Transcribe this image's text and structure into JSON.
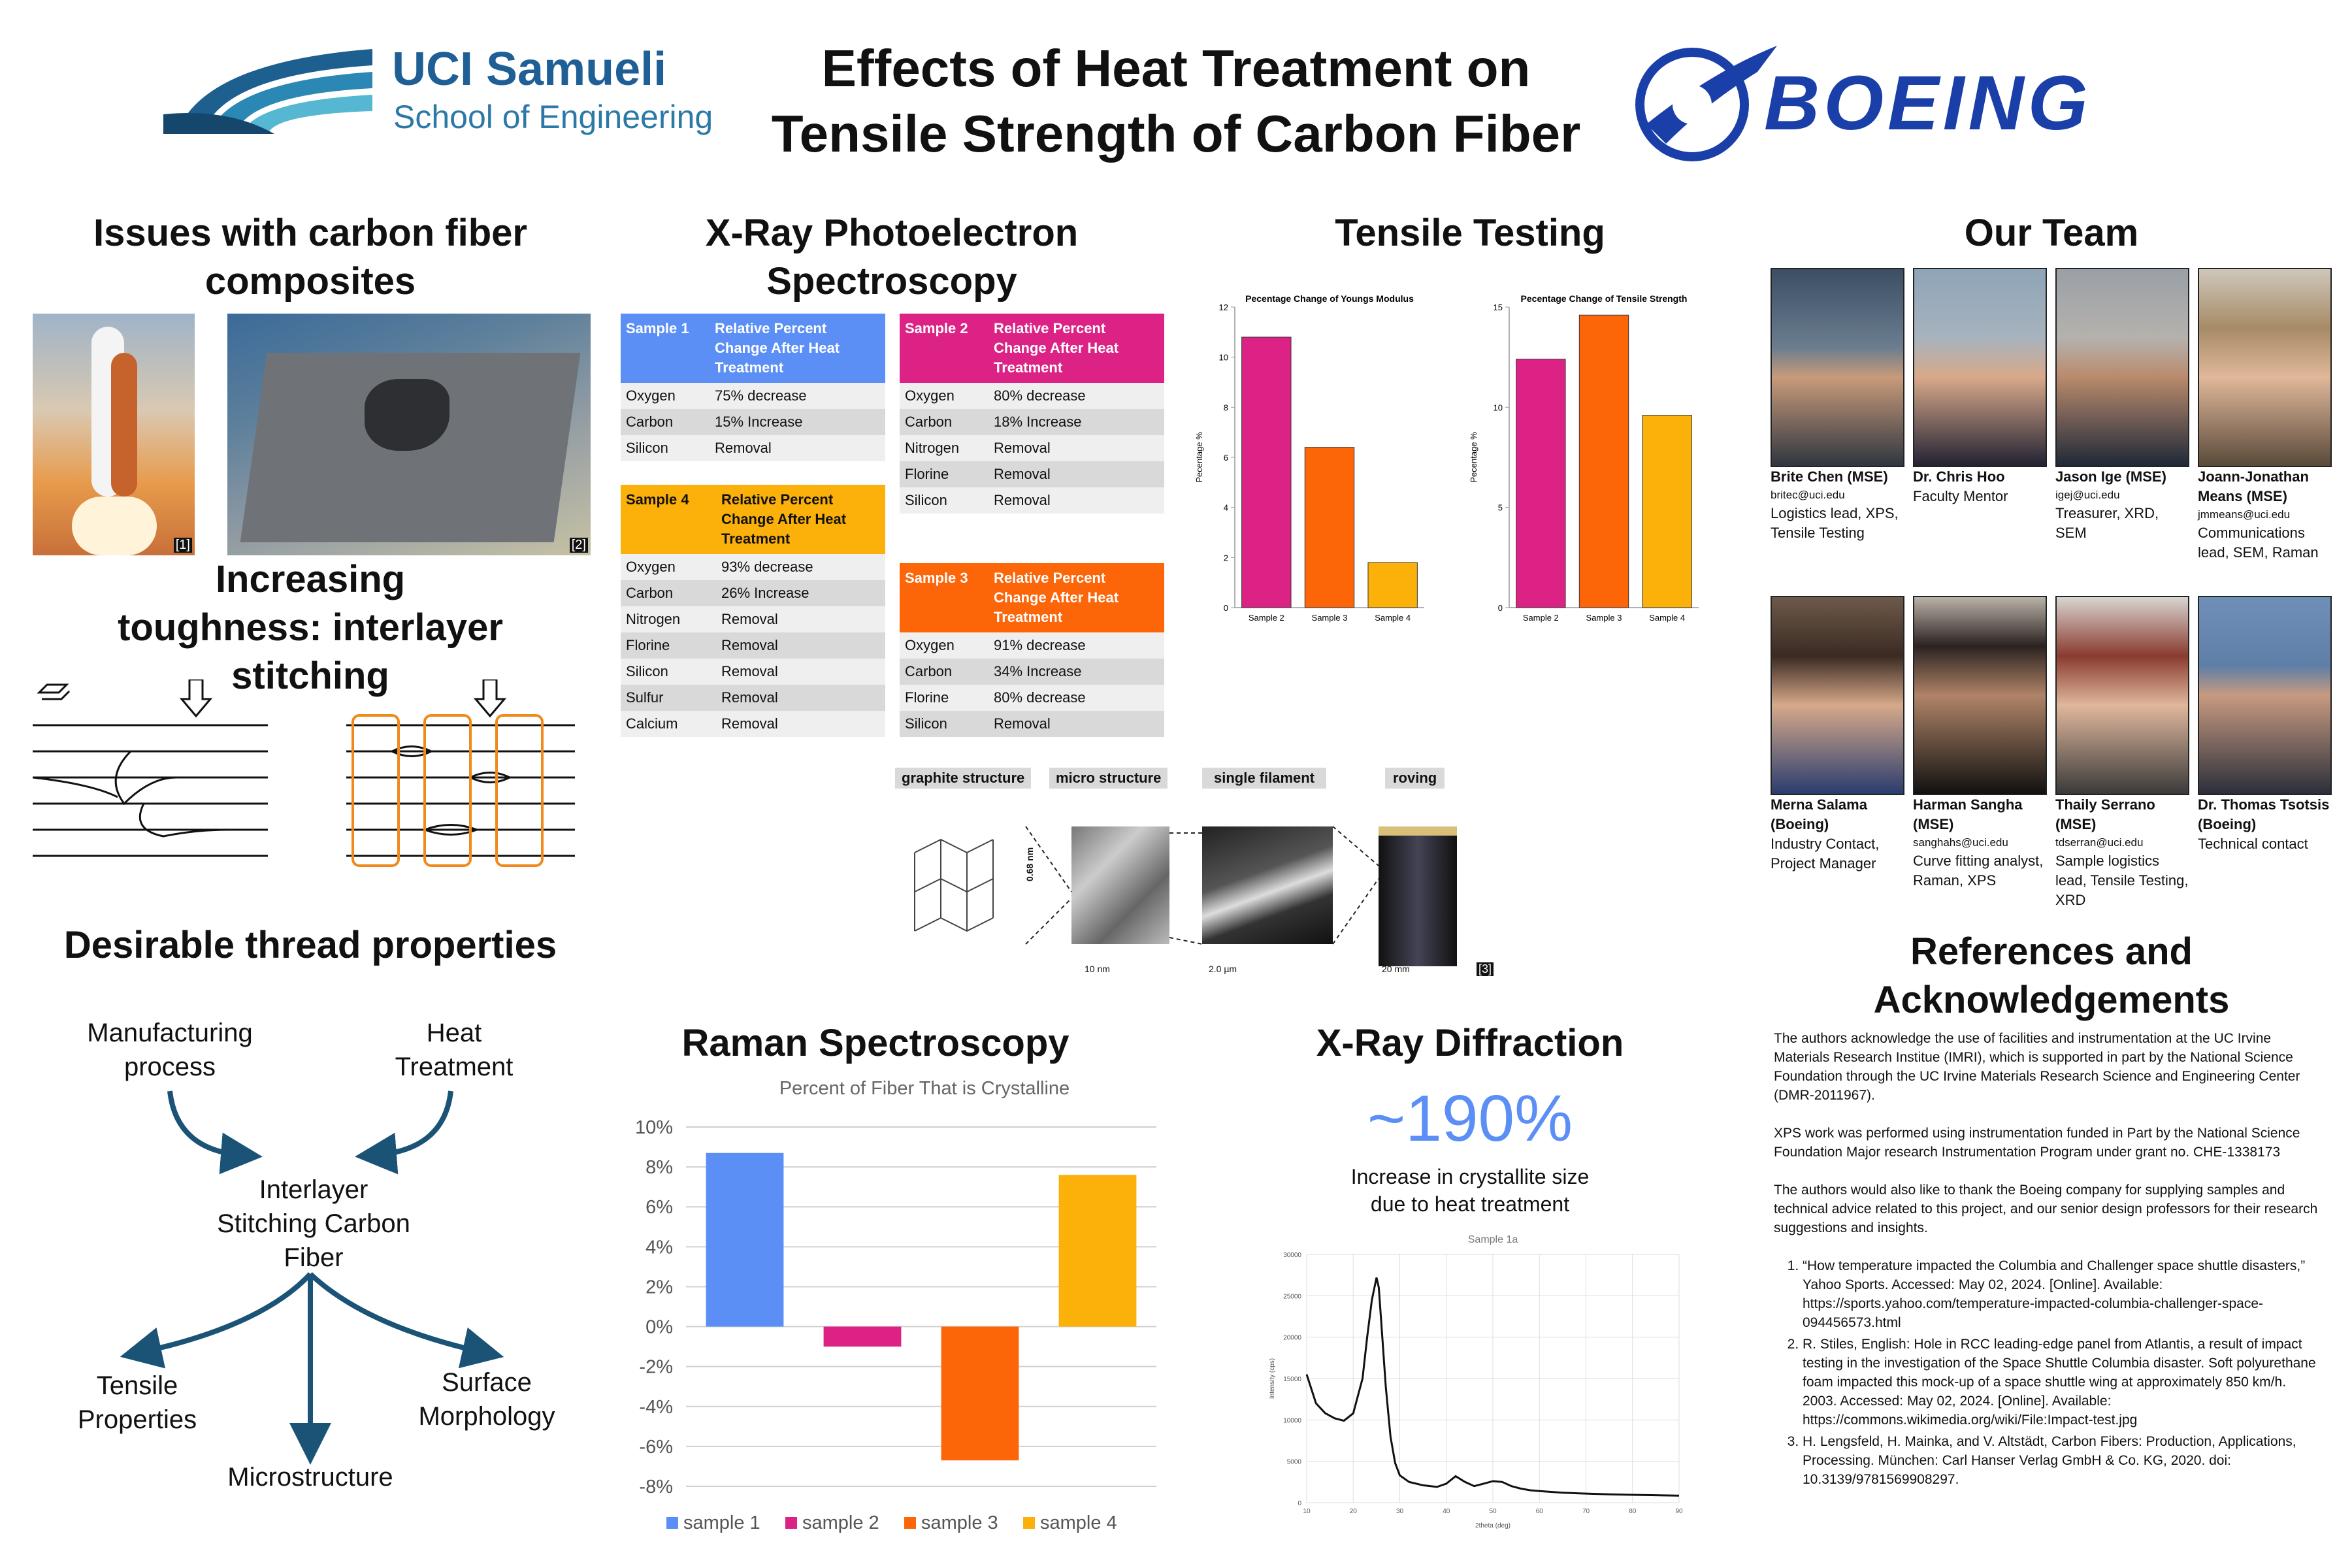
{
  "header": {
    "uci_logo_line1": "UCI Samueli",
    "uci_logo_line2": "School of Engineering",
    "title_line1": "Effects of Heat Treatment on",
    "title_line2": "Tensile Strength of Carbon Fiber",
    "boeing_logo": "BOEING"
  },
  "issues": {
    "heading": "Issues with carbon fiber composites",
    "img1_ref": "[1]",
    "img2_ref": "[2]",
    "toughness_heading": "Increasing toughness: interlayer stitching"
  },
  "thread": {
    "heading": "Desirable thread properties",
    "manufacturing": "Manufacturing process",
    "heat": "Heat Treatment",
    "center": "Interlayer Stitching Carbon Fiber",
    "tensile": "Tensile Properties",
    "surface": "Surface Morphology",
    "micro": "Microstructure"
  },
  "xps": {
    "heading": "X-Ray Photoelectron Spectroscopy",
    "tables": [
      {
        "sample": "Sample 1",
        "header": "Relative Percent Change After Heat Treatment",
        "color": "#5b8ff5",
        "rows": [
          [
            "Oxygen",
            "75% decrease"
          ],
          [
            "Carbon",
            "15% Increase"
          ],
          [
            "Silicon",
            "Removal"
          ]
        ]
      },
      {
        "sample": "Sample 2",
        "header": "Relative Percent Change After Heat Treatment",
        "color": "#dc2385",
        "rows": [
          [
            "Oxygen",
            "80% decrease"
          ],
          [
            "Carbon",
            "18% Increase"
          ],
          [
            "Nitrogen",
            "Removal"
          ],
          [
            "Florine",
            "Removal"
          ],
          [
            "Silicon",
            "Removal"
          ]
        ]
      },
      {
        "sample": "Sample 4",
        "header": "Relative Percent Change After Heat Treatment",
        "color": "#fcb00a",
        "rows": [
          [
            "Oxygen",
            "93% decrease"
          ],
          [
            "Carbon",
            "26% Increase"
          ],
          [
            "Nitrogen",
            "Removal"
          ],
          [
            "Florine",
            "Removal"
          ],
          [
            "Silicon",
            "Removal"
          ],
          [
            "Sulfur",
            "Removal"
          ],
          [
            "Calcium",
            "Removal"
          ]
        ]
      },
      {
        "sample": "Sample 3",
        "header": "Relative Percent Change After Heat Treatment",
        "color": "#fc6508",
        "rows": [
          [
            "Oxygen",
            "91% decrease"
          ],
          [
            "Carbon",
            "34% Increase"
          ],
          [
            "Florine",
            "80% decrease"
          ],
          [
            "Silicon",
            "Removal"
          ]
        ]
      }
    ],
    "structure_labels": [
      "graphite structure",
      "micro structure",
      "single filament",
      "roving"
    ],
    "scale_labels": [
      "10 nm",
      "2.0 µm",
      "20 mm"
    ],
    "dim_label": "0.68 nm",
    "structure_ref": "[3]"
  },
  "tensile": {
    "heading": "Tensile Testing"
  },
  "raman": {
    "heading": "Raman Spectroscopy"
  },
  "xrd": {
    "heading": "X-Ray Diffraction",
    "big_value": "~190%",
    "caption_line1": "Increase in crystallite size",
    "caption_line2": "due to heat treatment"
  },
  "team": {
    "heading": "Our Team",
    "members": [
      {
        "name": "Brite Chen (MSE)",
        "email": "britec@uci.edu",
        "role": "Logistics lead, XPS, Tensile Testing"
      },
      {
        "name": "Dr. Chris Hoo",
        "email": "",
        "role": "Faculty Mentor"
      },
      {
        "name": "Jason Ige (MSE)",
        "email": "igej@uci.edu",
        "role": "Treasurer, XRD, SEM"
      },
      {
        "name": "Joann-Jonathan Means (MSE)",
        "email": "jmmeans@uci.edu",
        "role": "Communications lead, SEM, Raman"
      },
      {
        "name": "Merna Salama (Boeing)",
        "email": "",
        "role": "Industry Contact, Project Manager"
      },
      {
        "name": "Harman Sangha (MSE)",
        "email": "sanghahs@uci.edu",
        "role": "Curve fitting analyst, Raman, XPS"
      },
      {
        "name": "Thaily Serrano (MSE)",
        "email": "tdserran@uci.edu",
        "role": "Sample logistics lead, Tensile Testing, XRD"
      },
      {
        "name": "Dr. Thomas Tsotsis (Boeing)",
        "email": "",
        "role": "Technical contact"
      }
    ]
  },
  "refs": {
    "heading": "References and Acknowledgements",
    "para1": "The authors acknowledge the use of facilities and instrumentation at the UC Irvine Materials Research Institue (IMRI), which is supported in part by the National Science Foundation through the UC Irvine Materials Research Science and Engineering Center (DMR-2011967).",
    "para2": "XPS work was performed using instrumentation funded in Part by the National Science Foundation Major research Instrumentation Program under grant no. CHE-1338173",
    "para3": "The authors would also like to thank the Boeing company for supplying samples and technical advice related to this project, and our senior design professors for their research suggestions and insights.",
    "list": [
      "“How temperature impacted the Columbia and Challenger space shuttle disasters,” Yahoo Sports. Accessed: May 02, 2024. [Online]. Available: https://sports.yahoo.com/temperature-impacted-columbia-challenger-space-094456573.html",
      "R. Stiles, English: Hole in RCC leading-edge panel from Atlantis, a result of impact testing in the investigation of the Space Shuttle Columbia disaster. Soft polyurethane foam impacted this mock-up of a space shuttle wing at approximately 850 km/h. 2003. Accessed: May 02, 2024. [Online]. Available: https://commons.wikimedia.org/wiki/File:Impact-test.jpg",
      "H. Lengsfeld, H. Mainka, and V. Altstädt, Carbon Fibers: Production, Applications, Processing. München: Carl Hanser Verlag GmbH & Co. KG, 2020. doi: 10.3139/9781569908297."
    ]
  },
  "chart_data": [
    {
      "type": "bar",
      "title": "Pecentage Change of Youngs Modulus",
      "ylabel": "Pecentage %",
      "categories": [
        "Sample 2",
        "Sample 3",
        "Sample 4"
      ],
      "values": [
        10.8,
        6.4,
        1.8
      ],
      "colors": [
        "#dc2385",
        "#fc6508",
        "#fcb00a"
      ],
      "ylim": [
        0,
        12
      ],
      "yticks": [
        0,
        2,
        4,
        6,
        8,
        10,
        12
      ]
    },
    {
      "type": "bar",
      "title": "Pecentage Change of Tensile Strength",
      "ylabel": "Pecentage %",
      "categories": [
        "Sample 2",
        "Sample 3",
        "Sample 4"
      ],
      "values": [
        12.4,
        14.6,
        9.6
      ],
      "colors": [
        "#dc2385",
        "#fc6508",
        "#fcb00a"
      ],
      "ylim": [
        0,
        15
      ],
      "yticks": [
        0,
        5,
        10,
        15
      ]
    },
    {
      "type": "bar",
      "title": "Percent of Fiber That is Crystalline",
      "categories": [
        "sample 1",
        "sample 2",
        "sample 3",
        "sample 4"
      ],
      "values": [
        8.7,
        -1.0,
        -6.7,
        7.6
      ],
      "colors": [
        "#5b8ff5",
        "#dc2385",
        "#fc6508",
        "#fcb00a"
      ],
      "ylim": [
        -8,
        10
      ],
      "yticks": [
        "10%",
        "8%",
        "6%",
        "4%",
        "2%",
        "0%",
        "-2%",
        "-4%",
        "-6%",
        "-8%"
      ],
      "grid": true,
      "legend": "bottom"
    },
    {
      "type": "line",
      "title": "Sample 1a",
      "xlabel": "2theta (deg)",
      "ylabel": "Intensity (cps)",
      "xlim": [
        10,
        90
      ],
      "ylim": [
        0,
        30000
      ],
      "xticks": [
        10,
        20,
        30,
        40,
        50,
        60,
        70,
        80,
        90
      ],
      "yticks": [
        0,
        5000,
        10000,
        15000,
        20000,
        25000,
        30000
      ],
      "x": [
        10,
        12,
        14,
        16,
        18,
        20,
        22,
        23,
        24,
        25,
        25.5,
        26,
        27,
        28,
        29,
        30,
        32,
        35,
        38,
        40,
        42,
        44,
        46,
        48,
        50,
        52,
        54,
        56,
        58,
        60,
        65,
        70,
        75,
        80,
        85,
        90
      ],
      "y": [
        15500,
        12000,
        10800,
        10200,
        9900,
        10800,
        15000,
        20000,
        24500,
        27200,
        26000,
        22000,
        14000,
        8000,
        4800,
        3300,
        2500,
        2100,
        1900,
        2300,
        3200,
        2500,
        2000,
        2300,
        2600,
        2500,
        2000,
        1700,
        1500,
        1400,
        1200,
        1100,
        1000,
        950,
        900,
        850
      ]
    }
  ]
}
